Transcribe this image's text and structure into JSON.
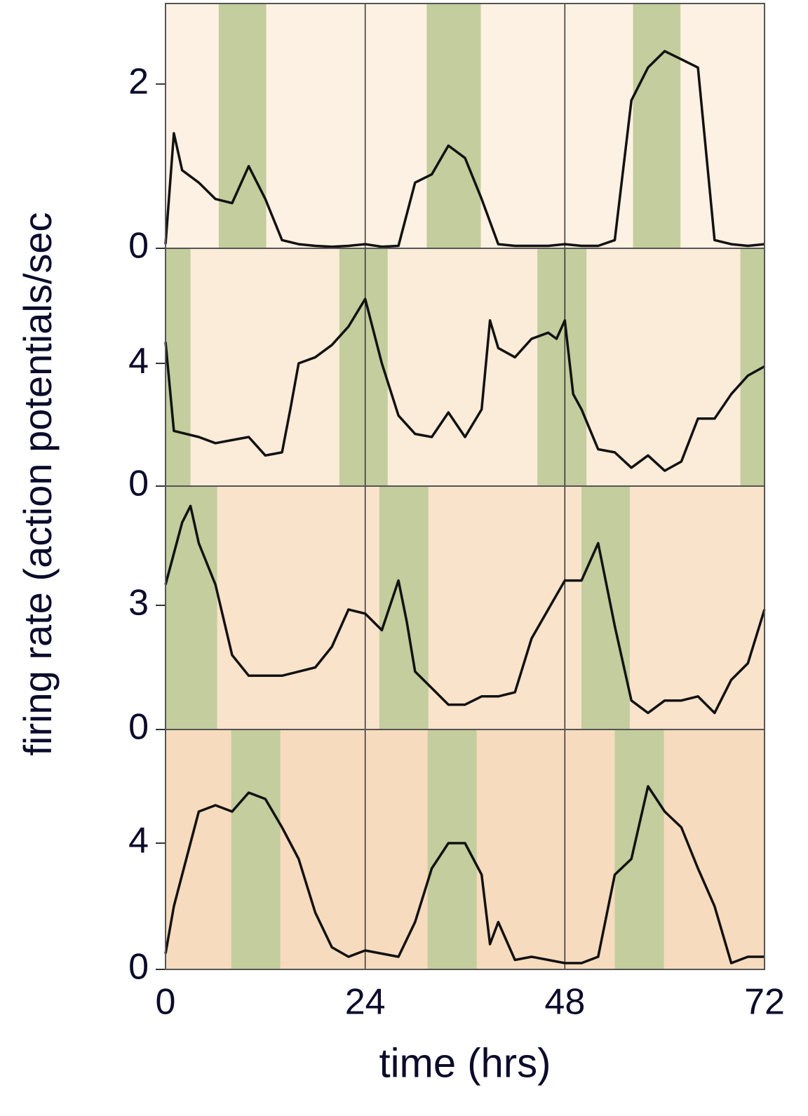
{
  "ylabel": "firing rate (action potentials/sec",
  "xlabel": "time (hrs)",
  "chart_data": [
    {
      "type": "line",
      "background": "#fdf1e3",
      "shade_color": "#c3cd9d",
      "color": "#111111",
      "shaded": [
        [
          6.4,
          12.1
        ],
        [
          31.4,
          37.9
        ],
        [
          56.2,
          61.9
        ]
      ],
      "x": [
        0,
        1,
        2,
        4,
        6,
        8,
        10,
        12,
        14,
        16,
        18,
        20,
        22,
        24,
        26,
        28,
        30,
        32,
        34,
        36,
        38,
        40,
        42,
        44,
        46,
        48,
        50,
        52,
        54,
        56,
        58,
        60,
        62,
        64,
        66,
        68,
        70,
        72
      ],
      "values": [
        0.05,
        1.4,
        0.95,
        0.8,
        0.6,
        0.55,
        1.0,
        0.6,
        0.1,
        0.05,
        0.03,
        0.02,
        0.03,
        0.05,
        0.02,
        0.03,
        0.8,
        0.9,
        1.25,
        1.1,
        0.6,
        0.05,
        0.03,
        0.03,
        0.03,
        0.05,
        0.03,
        0.03,
        0.1,
        1.8,
        2.2,
        2.4,
        2.3,
        2.2,
        0.1,
        0.05,
        0.03,
        0.05
      ],
      "xlim": [
        0,
        72
      ],
      "xticks": [
        0,
        24,
        48,
        72
      ],
      "ylim": [
        0,
        2.98
      ],
      "yticks": [
        0,
        2
      ],
      "grid": true
    },
    {
      "type": "line",
      "background": "#fbebd9",
      "shade_color": "#c3cd9d",
      "color": "#111111",
      "shaded": [
        [
          0,
          3
        ],
        [
          20.9,
          26.7
        ],
        [
          44.7,
          50.6
        ],
        [
          69.1,
          72
        ]
      ],
      "x": [
        0,
        1,
        4,
        6,
        8,
        10,
        12,
        14,
        15,
        16,
        18,
        20,
        22,
        24,
        26,
        28,
        30,
        32,
        34,
        36,
        38,
        39,
        40,
        42,
        44,
        46,
        47,
        48,
        49,
        50,
        52,
        54,
        56,
        58,
        60,
        62,
        64,
        66,
        68,
        70,
        72
      ],
      "values": [
        4.7,
        1.8,
        1.6,
        1.4,
        1.5,
        1.6,
        1.0,
        1.1,
        2.5,
        4.0,
        4.2,
        4.6,
        5.2,
        6.1,
        4.0,
        2.3,
        1.7,
        1.6,
        2.4,
        1.6,
        2.5,
        5.4,
        4.5,
        4.2,
        4.8,
        5.0,
        4.8,
        5.4,
        3.0,
        2.5,
        1.2,
        1.1,
        0.6,
        1.0,
        0.5,
        0.8,
        2.2,
        2.2,
        3.0,
        3.6,
        3.9
      ],
      "xlim": [
        0,
        72
      ],
      "xticks": [
        0,
        24,
        48,
        72
      ],
      "ylim": [
        0,
        7.75
      ],
      "yticks": [
        0,
        4
      ],
      "grid": true
    },
    {
      "type": "line",
      "background": "#f9e3cb",
      "shade_color": "#c3cd9d",
      "color": "#111111",
      "shaded": [
        [
          0,
          6.2
        ],
        [
          25.7,
          31.6
        ],
        [
          50,
          55.8
        ]
      ],
      "x": [
        0,
        2,
        3,
        4,
        6,
        8,
        10,
        12,
        14,
        16,
        18,
        20,
        22,
        24,
        26,
        28,
        29,
        30,
        32,
        34,
        36,
        38,
        40,
        42,
        44,
        46,
        48,
        50,
        52,
        54,
        56,
        58,
        60,
        62,
        64,
        66,
        68,
        70,
        72
      ],
      "values": [
        3.5,
        5.0,
        5.4,
        4.5,
        3.5,
        1.8,
        1.3,
        1.3,
        1.3,
        1.4,
        1.5,
        2.0,
        2.9,
        2.8,
        2.4,
        3.6,
        2.6,
        1.4,
        1.0,
        0.6,
        0.6,
        0.8,
        0.8,
        0.9,
        2.2,
        2.9,
        3.6,
        3.6,
        4.5,
        2.5,
        0.7,
        0.4,
        0.7,
        0.7,
        0.8,
        0.4,
        1.2,
        1.6,
        2.9
      ],
      "xlim": [
        0,
        72
      ],
      "xticks": [
        0,
        24,
        48,
        72
      ],
      "ylim": [
        0,
        5.88
      ],
      "yticks": [
        0,
        3
      ],
      "grid": true
    },
    {
      "type": "line",
      "background": "#f7dbbe",
      "shade_color": "#c3cd9d",
      "color": "#111111",
      "shaded": [
        [
          7.9,
          13.8
        ],
        [
          31.5,
          37.4
        ],
        [
          54,
          59.9
        ]
      ],
      "x": [
        0,
        1,
        2,
        4,
        6,
        8,
        10,
        12,
        14,
        16,
        18,
        20,
        22,
        24,
        26,
        28,
        30,
        32,
        34,
        36,
        38,
        39,
        40,
        42,
        44,
        46,
        48,
        50,
        52,
        54,
        56,
        58,
        60,
        62,
        64,
        66,
        68,
        70,
        72
      ],
      "values": [
        0.5,
        2.0,
        3.0,
        5.0,
        5.2,
        5.0,
        5.6,
        5.4,
        4.5,
        3.5,
        1.8,
        0.7,
        0.4,
        0.6,
        0.5,
        0.4,
        1.5,
        3.2,
        4.0,
        4.0,
        3.0,
        0.8,
        1.5,
        0.3,
        0.4,
        0.3,
        0.2,
        0.2,
        0.4,
        3.0,
        3.5,
        5.8,
        5.0,
        4.5,
        3.2,
        2.0,
        0.2,
        0.4,
        0.4
      ],
      "xlim": [
        0,
        72
      ],
      "xticks": [
        0,
        24,
        48,
        72
      ],
      "ylim": [
        0,
        7.6
      ],
      "yticks": [
        0,
        4
      ],
      "grid": true,
      "show_xtick_labels": true
    }
  ]
}
